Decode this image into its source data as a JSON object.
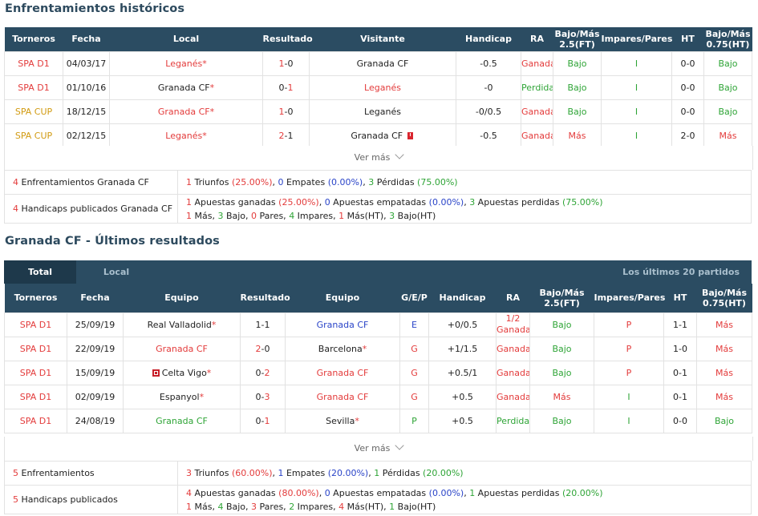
{
  "h2h": {
    "title": "Enfrentamientos históricos",
    "headers": [
      "Torneros",
      "Fecha",
      "Local",
      "Resultado",
      "Visitante",
      "Handicap",
      "RA",
      "Bajo/Más 2.5(FT)",
      "Impares/Pares",
      "HT",
      "Bajo/Más 0.75(HT)"
    ],
    "rows": [
      {
        "torneo": "SPA D1",
        "torneo_color": "red",
        "fecha": "04/03/17",
        "local": "Leganés",
        "local_color": "red",
        "local_star": "*",
        "res_a": "1",
        "res_sep": "-",
        "res_b": "0",
        "res_a_color": "red",
        "res_b_color": "dark",
        "visitante": "Granada CF",
        "visitante_color": "dark",
        "visitante_star": "",
        "visitante_card": false,
        "handicap": "-0.5",
        "ra": "Ganada",
        "ra_color": "red",
        "ou": "Bajo",
        "ou_color": "green",
        "ip": "I",
        "ip_color": "green",
        "ht": "0-0",
        "ht_ou": "Bajo",
        "ht_ou_color": "green"
      },
      {
        "torneo": "SPA D1",
        "torneo_color": "red",
        "fecha": "01/10/16",
        "local": "Granada CF",
        "local_color": "dark",
        "local_star": "*",
        "res_a": "0",
        "res_sep": "-",
        "res_b": "1",
        "res_a_color": "dark",
        "res_b_color": "red",
        "visitante": "Leganés",
        "visitante_color": "red",
        "visitante_star": "",
        "visitante_card": false,
        "handicap": "-0",
        "ra": "Perdida",
        "ra_color": "green",
        "ou": "Bajo",
        "ou_color": "green",
        "ip": "I",
        "ip_color": "green",
        "ht": "0-0",
        "ht_ou": "Bajo",
        "ht_ou_color": "green"
      },
      {
        "torneo": "SPA CUP",
        "torneo_color": "gold",
        "fecha": "18/12/15",
        "local": "Granada CF",
        "local_color": "red",
        "local_star": "*",
        "res_a": "1",
        "res_sep": "-",
        "res_b": "0",
        "res_a_color": "red",
        "res_b_color": "dark",
        "visitante": "Leganés",
        "visitante_color": "dark",
        "visitante_star": "",
        "visitante_card": false,
        "handicap": "-0/0.5",
        "ra": "Ganada",
        "ra_color": "red",
        "ou": "Bajo",
        "ou_color": "green",
        "ip": "I",
        "ip_color": "green",
        "ht": "0-0",
        "ht_ou": "Bajo",
        "ht_ou_color": "green"
      },
      {
        "torneo": "SPA CUP",
        "torneo_color": "gold",
        "fecha": "02/12/15",
        "local": "Leganés",
        "local_color": "red",
        "local_star": "*",
        "res_a": "2",
        "res_sep": "-",
        "res_b": "1",
        "res_a_color": "red",
        "res_b_color": "dark",
        "visitante": "Granada CF",
        "visitante_color": "dark",
        "visitante_star": "",
        "visitante_card": true,
        "handicap": "-0.5",
        "ra": "Ganada",
        "ra_color": "red",
        "ou": "Más",
        "ou_color": "red",
        "ip": "I",
        "ip_color": "green",
        "ht": "2-0",
        "ht_ou": "Más",
        "ht_ou_color": "red"
      }
    ],
    "ver_mas": "Ver más",
    "summary": {
      "row1": {
        "num": "4",
        "label": " Enfrentamientos Granada CF",
        "parts": [
          [
            "1",
            "red"
          ],
          [
            " Triunfos ",
            "dark"
          ],
          [
            "(25.00%)",
            "red"
          ],
          [
            ", ",
            "dark"
          ],
          [
            "0",
            "blue"
          ],
          [
            " Empates ",
            "dark"
          ],
          [
            "(0.00%)",
            "blue"
          ],
          [
            ", ",
            "dark"
          ],
          [
            "3",
            "green"
          ],
          [
            " Pérdidas ",
            "dark"
          ],
          [
            "(75.00%)",
            "green"
          ]
        ]
      },
      "row2": {
        "num": "4",
        "label": " Handicaps publicados Granada CF",
        "line1": [
          [
            "1",
            "red"
          ],
          [
            " Apuestas ganadas ",
            "dark"
          ],
          [
            "(25.00%)",
            "red"
          ],
          [
            ", ",
            "dark"
          ],
          [
            "0",
            "blue"
          ],
          [
            " Apuestas empatadas ",
            "dark"
          ],
          [
            "(0.00%)",
            "blue"
          ],
          [
            ", ",
            "dark"
          ],
          [
            "3",
            "green"
          ],
          [
            " Apuestas perdidas ",
            "dark"
          ],
          [
            "(75.00%)",
            "green"
          ]
        ],
        "line2": [
          [
            "1",
            "red"
          ],
          [
            " Más, ",
            "dark"
          ],
          [
            "3",
            "green"
          ],
          [
            " Bajo, ",
            "dark"
          ],
          [
            "0",
            "red"
          ],
          [
            " Pares, ",
            "dark"
          ],
          [
            "4",
            "green"
          ],
          [
            " Impares, ",
            "dark"
          ],
          [
            "1",
            "red"
          ],
          [
            " Más(HT), ",
            "dark"
          ],
          [
            "3",
            "green"
          ],
          [
            " Bajo(HT)",
            "dark"
          ]
        ]
      }
    }
  },
  "recent": {
    "title": "Granada CF - Últimos resultados",
    "tabs": [
      "Total",
      "Local"
    ],
    "tab_right": "Los últimos 20 partidos",
    "headers": [
      "Torneros",
      "Fecha",
      "Equipo",
      "Resultado",
      "Equipo",
      "G/E/P",
      "Handicap",
      "RA",
      "Bajo/Más 2.5(FT)",
      "Impares/Pares",
      "HT",
      "Bajo/Más 0.75(HT)"
    ],
    "rows": [
      {
        "torneo": "SPA D1",
        "fecha": "25/09/19",
        "home": "Real Valladolid",
        "home_color": "dark",
        "home_star": "*",
        "home_icon": false,
        "res_a": "1",
        "res_b": "1",
        "res_a_color": "dark",
        "res_b_color": "dark",
        "away": "Granada CF",
        "away_color": "blue",
        "away_star": "",
        "gep": "E",
        "gep_color": "blue",
        "handicap": "+0/0.5",
        "ra": "1/2 Ganada",
        "ra_two": true,
        "ra_l1": "1/2",
        "ra_l2": "Ganada",
        "ra_color": "red",
        "ou": "Bajo",
        "ou_color": "green",
        "ip": "P",
        "ip_color": "red",
        "ht": "1-1",
        "ht_ou": "Más",
        "ht_ou_color": "red"
      },
      {
        "torneo": "SPA D1",
        "fecha": "22/09/19",
        "home": "Granada CF",
        "home_color": "red",
        "home_star": "",
        "home_icon": false,
        "res_a": "2",
        "res_b": "0",
        "res_a_color": "red",
        "res_b_color": "dark",
        "away": "Barcelona",
        "away_color": "dark",
        "away_star": "*",
        "gep": "G",
        "gep_color": "red",
        "handicap": "+1/1.5",
        "ra": "Ganada",
        "ra_two": false,
        "ra_color": "red",
        "ou": "Bajo",
        "ou_color": "green",
        "ip": "P",
        "ip_color": "red",
        "ht": "1-0",
        "ht_ou": "Más",
        "ht_ou_color": "red"
      },
      {
        "torneo": "SPA D1",
        "fecha": "15/09/19",
        "home": "Celta Vigo",
        "home_color": "dark",
        "home_star": "*",
        "home_icon": true,
        "res_a": "0",
        "res_b": "2",
        "res_a_color": "dark",
        "res_b_color": "red",
        "away": "Granada CF",
        "away_color": "red",
        "away_star": "",
        "gep": "G",
        "gep_color": "red",
        "handicap": "+0.5/1",
        "ra": "Ganada",
        "ra_two": false,
        "ra_color": "red",
        "ou": "Bajo",
        "ou_color": "green",
        "ip": "P",
        "ip_color": "red",
        "ht": "0-1",
        "ht_ou": "Más",
        "ht_ou_color": "red"
      },
      {
        "torneo": "SPA D1",
        "fecha": "02/09/19",
        "home": "Espanyol",
        "home_color": "dark",
        "home_star": "*",
        "home_icon": false,
        "res_a": "0",
        "res_b": "3",
        "res_a_color": "dark",
        "res_b_color": "red",
        "away": "Granada CF",
        "away_color": "red",
        "away_star": "",
        "gep": "G",
        "gep_color": "red",
        "handicap": "+0.5",
        "ra": "Ganada",
        "ra_two": false,
        "ra_color": "red",
        "ou": "Más",
        "ou_color": "red",
        "ip": "I",
        "ip_color": "green",
        "ht": "0-1",
        "ht_ou": "Más",
        "ht_ou_color": "red"
      },
      {
        "torneo": "SPA D1",
        "fecha": "24/08/19",
        "home": "Granada CF",
        "home_color": "green",
        "home_star": "",
        "home_icon": false,
        "res_a": "0",
        "res_b": "1",
        "res_a_color": "dark",
        "res_b_color": "red",
        "away": "Sevilla",
        "away_color": "dark",
        "away_star": "*",
        "gep": "P",
        "gep_color": "green",
        "handicap": "+0.5",
        "ra": "Perdida",
        "ra_two": false,
        "ra_color": "green",
        "ou": "Bajo",
        "ou_color": "green",
        "ip": "I",
        "ip_color": "green",
        "ht": "0-0",
        "ht_ou": "Bajo",
        "ht_ou_color": "green"
      }
    ],
    "ver_mas": "Ver más",
    "summary": {
      "row1": {
        "num": "5",
        "label": " Enfrentamientos",
        "parts": [
          [
            "3",
            "red"
          ],
          [
            " Triunfos ",
            "dark"
          ],
          [
            "(60.00%)",
            "red"
          ],
          [
            ", ",
            "dark"
          ],
          [
            "1",
            "blue"
          ],
          [
            " Empates ",
            "dark"
          ],
          [
            "(20.00%)",
            "blue"
          ],
          [
            ", ",
            "dark"
          ],
          [
            "1",
            "green"
          ],
          [
            " Pérdidas ",
            "dark"
          ],
          [
            "(20.00%)",
            "green"
          ]
        ]
      },
      "row2": {
        "num": "5",
        "label": " Handicaps publicados",
        "line1": [
          [
            "4",
            "red"
          ],
          [
            " Apuestas ganadas ",
            "dark"
          ],
          [
            "(80.00%)",
            "red"
          ],
          [
            ", ",
            "dark"
          ],
          [
            "0",
            "blue"
          ],
          [
            " Apuestas empatadas ",
            "dark"
          ],
          [
            "(0.00%)",
            "blue"
          ],
          [
            ", ",
            "dark"
          ],
          [
            "1",
            "green"
          ],
          [
            " Apuestas perdidas ",
            "dark"
          ],
          [
            "(20.00%)",
            "green"
          ]
        ],
        "line2": [
          [
            "1",
            "red"
          ],
          [
            " Más, ",
            "dark"
          ],
          [
            "4",
            "green"
          ],
          [
            " Bajo, ",
            "dark"
          ],
          [
            "3",
            "red"
          ],
          [
            " Pares, ",
            "dark"
          ],
          [
            "2",
            "green"
          ],
          [
            " Impares, ",
            "dark"
          ],
          [
            "4",
            "red"
          ],
          [
            " Más(HT), ",
            "dark"
          ],
          [
            "1",
            "green"
          ],
          [
            " Bajo(HT)",
            "dark"
          ]
        ]
      }
    }
  }
}
